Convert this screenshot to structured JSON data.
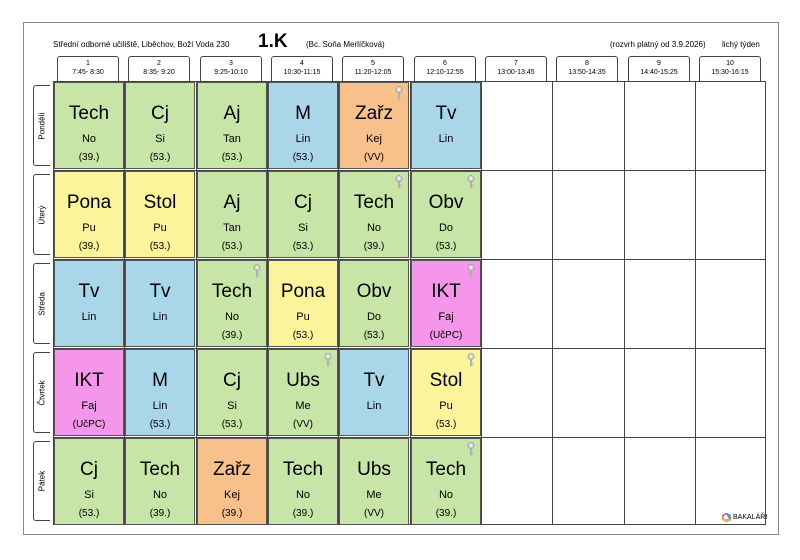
{
  "header": {
    "school": "Střední odborné učiliště, Liběchov, Boží Voda 230",
    "class_name": "1.K",
    "teacher": "(Bc. Soňa Merlíčková)",
    "valid_from": "(rozvrh platný od 3.9.2026)",
    "week_type": "lichý týden"
  },
  "periods": [
    {
      "num": "1",
      "time": "7:45- 8:30"
    },
    {
      "num": "2",
      "time": "8:35- 9:20"
    },
    {
      "num": "3",
      "time": "9:25-10:10"
    },
    {
      "num": "4",
      "time": "10:30-11:15"
    },
    {
      "num": "5",
      "time": "11:20-12:05"
    },
    {
      "num": "6",
      "time": "12:10-12:55"
    },
    {
      "num": "7",
      "time": "13:00-13:45"
    },
    {
      "num": "8",
      "time": "13:50-14:35"
    },
    {
      "num": "9",
      "time": "14:40-15:25"
    },
    {
      "num": "10",
      "time": "15:30-16:15"
    }
  ],
  "days": [
    {
      "name": "Pondělí",
      "lessons": [
        {
          "subject": "Tech",
          "teacher": "No",
          "room": "(39.)",
          "color": "#c6e5a6",
          "key": false
        },
        {
          "subject": "Cj",
          "teacher": "Si",
          "room": "(53.)",
          "color": "#c6e5a6",
          "key": false
        },
        {
          "subject": "Aj",
          "teacher": "Tan",
          "room": "(53.)",
          "color": "#c6e5a6",
          "key": false
        },
        {
          "subject": "M",
          "teacher": "Lin",
          "room": "(53.)",
          "color": "#a9d6e9",
          "key": false
        },
        {
          "subject": "Zařz",
          "teacher": "Kej",
          "room": "(VV)",
          "color": "#f8c08a",
          "key": true
        },
        {
          "subject": "Tv",
          "teacher": "Lin",
          "room": "",
          "color": "#a9d6e9",
          "key": false
        }
      ]
    },
    {
      "name": "Úterý",
      "lessons": [
        {
          "subject": "Pona",
          "teacher": "Pu",
          "room": "(39.)",
          "color": "#fbf49a",
          "key": false
        },
        {
          "subject": "Stol",
          "teacher": "Pu",
          "room": "(53.)",
          "color": "#fbf49a",
          "key": false
        },
        {
          "subject": "Aj",
          "teacher": "Tan",
          "room": "(53.)",
          "color": "#c6e5a6",
          "key": false
        },
        {
          "subject": "Cj",
          "teacher": "Si",
          "room": "(53.)",
          "color": "#c6e5a6",
          "key": false
        },
        {
          "subject": "Tech",
          "teacher": "No",
          "room": "(39.)",
          "color": "#c6e5a6",
          "key": true
        },
        {
          "subject": "Obv",
          "teacher": "Do",
          "room": "(53.)",
          "color": "#c6e5a6",
          "key": true
        }
      ]
    },
    {
      "name": "Středa",
      "lessons": [
        {
          "subject": "Tv",
          "teacher": "Lin",
          "room": "",
          "color": "#a9d6e9",
          "key": false
        },
        {
          "subject": "Tv",
          "teacher": "Lin",
          "room": "",
          "color": "#a9d6e9",
          "key": false
        },
        {
          "subject": "Tech",
          "teacher": "No",
          "room": "(39.)",
          "color": "#c6e5a6",
          "key": true
        },
        {
          "subject": "Pona",
          "teacher": "Pu",
          "room": "(53.)",
          "color": "#fbf49a",
          "key": false
        },
        {
          "subject": "Obv",
          "teacher": "Do",
          "room": "(53.)",
          "color": "#c6e5a6",
          "key": false
        },
        {
          "subject": "IKT",
          "teacher": "Faj",
          "room": "(UčPC)",
          "color": "#f595ec",
          "key": true
        }
      ]
    },
    {
      "name": "Čtvrtek",
      "lessons": [
        {
          "subject": "IKT",
          "teacher": "Faj",
          "room": "(UčPC)",
          "color": "#f595ec",
          "key": false
        },
        {
          "subject": "M",
          "teacher": "Lin",
          "room": "(53.)",
          "color": "#a9d6e9",
          "key": false
        },
        {
          "subject": "Cj",
          "teacher": "Si",
          "room": "(53.)",
          "color": "#c6e5a6",
          "key": false
        },
        {
          "subject": "Ubs",
          "teacher": "Me",
          "room": "(VV)",
          "color": "#c6e5a6",
          "key": true
        },
        {
          "subject": "Tv",
          "teacher": "Lin",
          "room": "",
          "color": "#a9d6e9",
          "key": false
        },
        {
          "subject": "Stol",
          "teacher": "Pu",
          "room": "(53.)",
          "color": "#fbf49a",
          "key": true
        }
      ]
    },
    {
      "name": "Pátek",
      "lessons": [
        {
          "subject": "Cj",
          "teacher": "Si",
          "room": "(53.)",
          "color": "#c6e5a6",
          "key": false
        },
        {
          "subject": "Tech",
          "teacher": "No",
          "room": "(39.)",
          "color": "#c6e5a6",
          "key": false
        },
        {
          "subject": "Zařz",
          "teacher": "Kej",
          "room": "(39.)",
          "color": "#f8c08a",
          "key": false
        },
        {
          "subject": "Tech",
          "teacher": "No",
          "room": "(39.)",
          "color": "#c6e5a6",
          "key": false
        },
        {
          "subject": "Ubs",
          "teacher": "Me",
          "room": "(VV)",
          "color": "#c6e5a6",
          "key": false
        },
        {
          "subject": "Tech",
          "teacher": "No",
          "room": "(39.)",
          "color": "#c6e5a6",
          "key": true
        }
      ]
    }
  ],
  "footer": {
    "logo_text": "BAKALÁŘI"
  }
}
